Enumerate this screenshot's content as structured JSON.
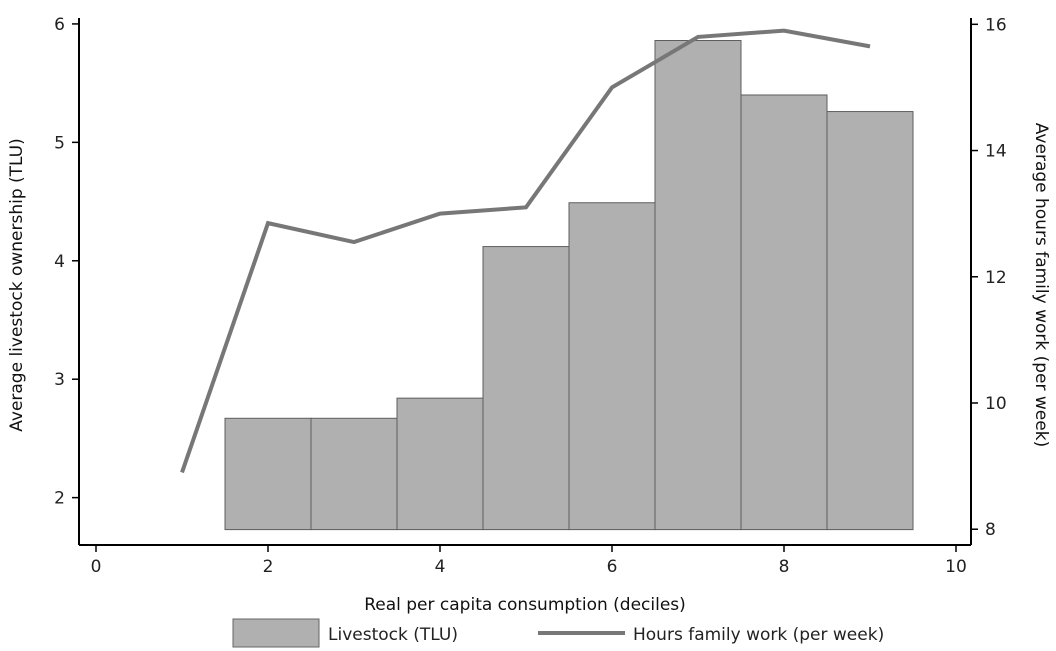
{
  "chart_data": {
    "type": "bar+line",
    "xlabel": "Real per capita consumption (deciles)",
    "ylabel_left": "Average livestock ownership (TLU)",
    "ylabel_right": "Average hours family work (per week)",
    "x_ticks": [
      "0",
      "2",
      "4",
      "6",
      "8",
      "10"
    ],
    "y_left_ticks": [
      "2",
      "3",
      "4",
      "5",
      "6"
    ],
    "y_right_ticks": [
      "8",
      "10",
      "12",
      "14",
      "16"
    ],
    "xlim": [
      0,
      10
    ],
    "ylim_left": [
      1.6,
      6.05
    ],
    "ylim_right": [
      7.75,
      16.1
    ],
    "grid": false,
    "legend_position": "bottom",
    "series": [
      {
        "name": "Livestock (TLU)",
        "type": "bar",
        "axis": "left",
        "color": "#b0b0b0",
        "x": [
          2,
          3,
          4,
          5,
          6,
          7,
          8,
          9
        ],
        "values": [
          2.67,
          2.67,
          2.84,
          4.12,
          4.49,
          5.86,
          5.4,
          5.26
        ]
      },
      {
        "name": "Hours family work (per week)",
        "type": "line",
        "axis": "right",
        "color": "#777777",
        "x": [
          1,
          2,
          3,
          4,
          5,
          6,
          7,
          8,
          9
        ],
        "values": [
          8.9,
          12.85,
          12.55,
          13.0,
          13.1,
          15.0,
          15.8,
          15.9,
          15.65
        ]
      }
    ]
  }
}
